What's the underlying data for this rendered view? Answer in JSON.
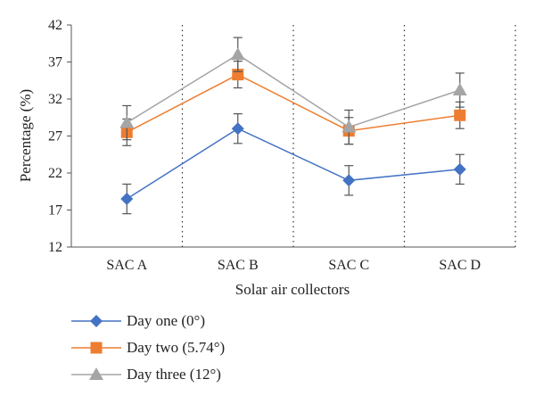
{
  "chart_data": {
    "type": "line",
    "categories": [
      "SAC A",
      "SAC B",
      "SAC C",
      "SAC D"
    ],
    "xlabel": "Solar air collectors",
    "ylabel": "Percentage (%)",
    "ylim": [
      12,
      42
    ],
    "yticks": [
      12,
      17,
      22,
      27,
      32,
      37,
      42
    ],
    "grid": "dotted vertical separators between categories",
    "legend_position": "bottom-left",
    "series": [
      {
        "name": "Day one (0°)",
        "color": "#4472C4",
        "marker": "diamond",
        "values": [
          18.5,
          28.0,
          21.0,
          22.5
        ],
        "error": [
          2.0,
          2.0,
          2.0,
          2.0
        ]
      },
      {
        "name": "Day two (5.74°)",
        "color": "#ED7D31",
        "marker": "square",
        "values": [
          27.5,
          35.3,
          27.7,
          29.8
        ],
        "error": [
          1.8,
          1.8,
          1.8,
          1.8
        ]
      },
      {
        "name": "Day three (12°)",
        "color": "#A5A5A5",
        "marker": "triangle",
        "values": [
          28.8,
          38.0,
          28.2,
          33.2
        ],
        "error": [
          2.3,
          2.3,
          2.3,
          2.3
        ]
      }
    ]
  }
}
